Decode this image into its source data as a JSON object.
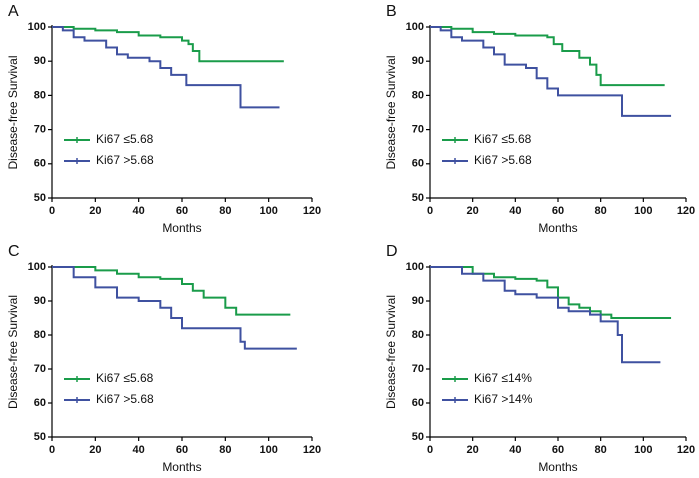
{
  "chart_data": [
    {
      "type": "line",
      "label": "A",
      "xlabel": "Months",
      "ylabel": "Disease-free Survival",
      "xlim": [
        0,
        120
      ],
      "xticks": [
        0,
        20,
        40,
        60,
        80,
        100,
        120
      ],
      "ylim": [
        50,
        100
      ],
      "yticks": [
        50,
        60,
        70,
        80,
        90,
        100
      ],
      "step": true,
      "legend": "lower left",
      "series": [
        {
          "name": "Ki67 ≤5.68",
          "color": "#1a9c4a",
          "x": [
            0,
            10,
            20,
            30,
            40,
            50,
            60,
            63,
            65,
            68,
            107
          ],
          "values": [
            100,
            99.5,
            99,
            98.5,
            97.5,
            97,
            96,
            95,
            93,
            90,
            90
          ]
        },
        {
          "name": "Ki67 >5.68",
          "color": "#3f51a0",
          "x": [
            0,
            5,
            10,
            15,
            25,
            30,
            35,
            45,
            50,
            55,
            62,
            87,
            105
          ],
          "values": [
            100,
            99,
            97,
            96,
            94,
            92,
            91,
            90,
            88,
            86,
            83,
            76.5,
            76.5
          ]
        }
      ]
    },
    {
      "type": "line",
      "label": "B",
      "xlabel": "Months",
      "ylabel": "Disease-free Survival",
      "xlim": [
        0,
        120
      ],
      "xticks": [
        0,
        20,
        40,
        60,
        80,
        100,
        120
      ],
      "ylim": [
        50,
        100
      ],
      "yticks": [
        50,
        60,
        70,
        80,
        90,
        100
      ],
      "step": true,
      "legend": "lower left",
      "series": [
        {
          "name": "Ki67 ≤5.68",
          "color": "#1a9c4a",
          "x": [
            0,
            10,
            20,
            30,
            40,
            55,
            58,
            62,
            70,
            75,
            78,
            80,
            110
          ],
          "values": [
            100,
            99.5,
            98.5,
            98,
            97.5,
            97,
            95,
            93,
            91,
            89,
            86,
            83,
            83
          ]
        },
        {
          "name": "Ki67 >5.68",
          "color": "#3f51a0",
          "x": [
            0,
            5,
            10,
            15,
            25,
            30,
            35,
            45,
            50,
            55,
            60,
            90,
            113
          ],
          "values": [
            100,
            99,
            97,
            96,
            94,
            92,
            89,
            88,
            85,
            82,
            80,
            74,
            74
          ]
        }
      ]
    },
    {
      "type": "line",
      "label": "C",
      "xlabel": "Months",
      "ylabel": "Disease-free Survival",
      "xlim": [
        0,
        120
      ],
      "xticks": [
        0,
        20,
        40,
        60,
        80,
        100,
        120
      ],
      "ylim": [
        50,
        100
      ],
      "yticks": [
        50,
        60,
        70,
        80,
        90,
        100
      ],
      "step": true,
      "legend": "lower left",
      "series": [
        {
          "name": "Ki67 ≤5.68",
          "color": "#1a9c4a",
          "x": [
            0,
            20,
            30,
            40,
            50,
            60,
            65,
            70,
            80,
            85,
            110
          ],
          "values": [
            100,
            99,
            98,
            97,
            96.5,
            95,
            93,
            91,
            88,
            86,
            86
          ]
        },
        {
          "name": "Ki67 >5.68",
          "color": "#3f51a0",
          "x": [
            0,
            10,
            20,
            30,
            40,
            50,
            55,
            60,
            87,
            89,
            113
          ],
          "values": [
            100,
            97,
            94,
            91,
            90,
            88,
            85,
            82,
            78,
            76,
            76
          ]
        }
      ]
    },
    {
      "type": "line",
      "label": "D",
      "xlabel": "Months",
      "ylabel": "Disease-free Survival",
      "xlim": [
        0,
        120
      ],
      "xticks": [
        0,
        20,
        40,
        60,
        80,
        100,
        120
      ],
      "ylim": [
        50,
        100
      ],
      "yticks": [
        50,
        60,
        70,
        80,
        90,
        100
      ],
      "step": true,
      "legend": "lower left",
      "series": [
        {
          "name": "Ki67 ≤14%",
          "color": "#1a9c4a",
          "x": [
            0,
            20,
            30,
            40,
            50,
            55,
            60,
            65,
            70,
            75,
            80,
            85,
            113
          ],
          "values": [
            100,
            98,
            97,
            96.5,
            96,
            94,
            91,
            89,
            88,
            87,
            86,
            85,
            85
          ]
        },
        {
          "name": "Ki67 >14%",
          "color": "#3f51a0",
          "x": [
            0,
            15,
            25,
            35,
            40,
            50,
            60,
            65,
            75,
            80,
            88,
            90,
            108
          ],
          "values": [
            100,
            98,
            96,
            93,
            92,
            91,
            88,
            87,
            86,
            84,
            80,
            72,
            72
          ]
        }
      ]
    }
  ]
}
